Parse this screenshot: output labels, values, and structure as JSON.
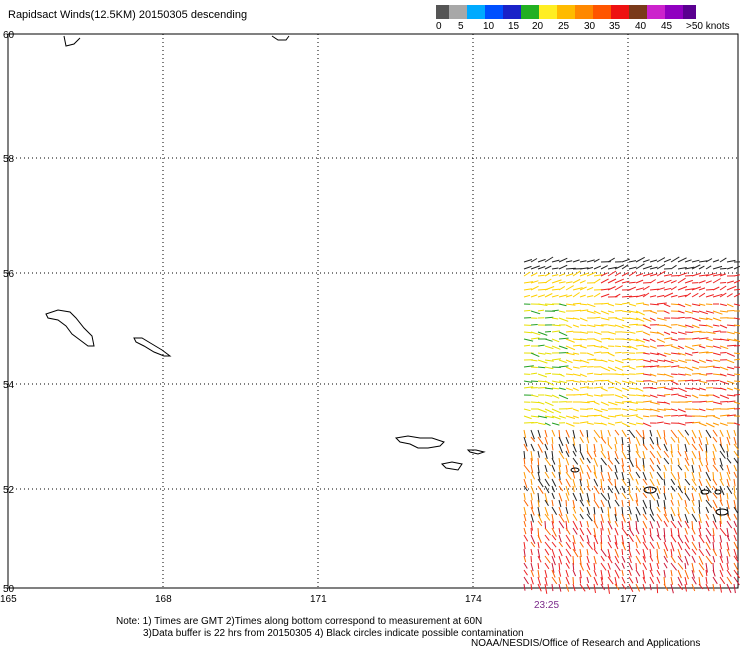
{
  "title": "Rapidsact Winds(12.5KM) 20150305 descending",
  "colorbar": {
    "swatches": [
      "#555555",
      "#a8a8a8",
      "#00aaff",
      "#0050ff",
      "#1a22c8",
      "#22b022",
      "#ffee22",
      "#ffbb00",
      "#ff8800",
      "#ff5500",
      "#ee1111",
      "#7a3a1a",
      "#cc22cc",
      "#9000c0",
      "#5a0090"
    ],
    "labels": [
      "0",
      "5",
      "10",
      "15",
      "20",
      "25",
      "30",
      "35",
      "40",
      "45",
      ">50 knots"
    ]
  },
  "map": {
    "lat_labels": [
      "60",
      "58",
      "56",
      "54",
      "52",
      "50"
    ],
    "lon_labels": [
      "165",
      "168",
      "171",
      "174",
      "177"
    ],
    "lon_label_extra": "",
    "wind_colors": [
      "#222222",
      "#22a022",
      "#e8e000",
      "#ffd000",
      "#ff9900",
      "#ff6600",
      "#ee2222",
      "#cc1a3a"
    ]
  },
  "pass_time": "23:25",
  "notes": [
    "Note: 1) Times are GMT 2)Times along bottom correspond to measurement at 60N",
    "3)Data buffer is 22 hrs from 20150305 4) Black circles indicate possible contamination"
  ],
  "credit": "NOAA/NESDIS/Office of Research and Applications"
}
